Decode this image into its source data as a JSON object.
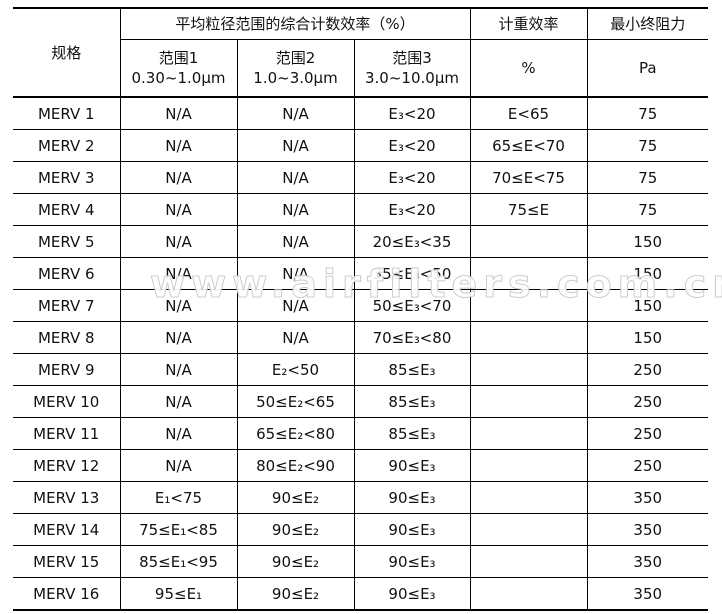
{
  "header": {
    "spec": "规格",
    "counting_group": "平均粒径范围的综合计数效率（%）",
    "weight": "计重效率",
    "resistance": "最小终阻力",
    "range1": "范围1",
    "range1_size": "0.30~1.0μm",
    "range2": "范围2",
    "range2_size": "1.0~3.0μm",
    "range3": "范围3",
    "range3_size": "3.0~10.0μm",
    "weight_unit": "%",
    "resistance_unit": "Pa"
  },
  "rows": [
    [
      "MERV 1",
      "N/A",
      "N/A",
      "E₃<20",
      "E<65",
      "75"
    ],
    [
      "MERV 2",
      "N/A",
      "N/A",
      "E₃<20",
      "65≤E<70",
      "75"
    ],
    [
      "MERV 3",
      "N/A",
      "N/A",
      "E₃<20",
      "70≤E<75",
      "75"
    ],
    [
      "MERV 4",
      "N/A",
      "N/A",
      "E₃<20",
      "75≤E",
      "75"
    ],
    [
      "MERV 5",
      "N/A",
      "N/A",
      "20≤E₃<35",
      "",
      "150"
    ],
    [
      "MERV 6",
      "N/A",
      "N/A",
      "35≤E₃<50",
      "",
      "150"
    ],
    [
      "MERV 7",
      "N/A",
      "N/A",
      "50≤E₃<70",
      "",
      "150"
    ],
    [
      "MERV 8",
      "N/A",
      "N/A",
      "70≤E₃<80",
      "",
      "150"
    ],
    [
      "MERV 9",
      "N/A",
      "E₂<50",
      "85≤E₃",
      "",
      "250"
    ],
    [
      "MERV 10",
      "N/A",
      "50≤E₂<65",
      "85≤E₃",
      "",
      "250"
    ],
    [
      "MERV 11",
      "N/A",
      "65≤E₂<80",
      "85≤E₃",
      "",
      "250"
    ],
    [
      "MERV 12",
      "N/A",
      "80≤E₂<90",
      "90≤E₃",
      "",
      "250"
    ],
    [
      "MERV 13",
      "E₁<75",
      "90≤E₂",
      "90≤E₃",
      "",
      "350"
    ],
    [
      "MERV 14",
      "75≤E₁<85",
      "90≤E₂",
      "90≤E₃",
      "",
      "350"
    ],
    [
      "MERV 15",
      "85≤E₁<95",
      "90≤E₂",
      "90≤E₃",
      "",
      "350"
    ],
    [
      "MERV 16",
      "95≤E₁",
      "90≤E₂",
      "90≤E₃",
      "",
      "350"
    ]
  ],
  "watermark": "www.airfilters.com.cn"
}
